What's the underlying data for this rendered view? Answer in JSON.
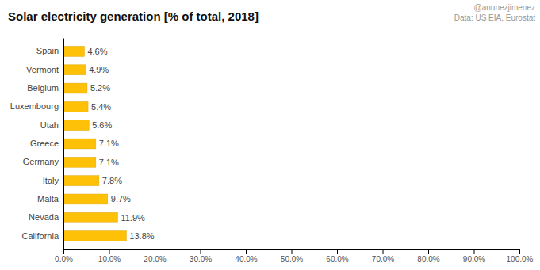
{
  "chart_data": {
    "type": "bar",
    "orientation": "horizontal",
    "title": "Solar electricity generation [% of total, 2018]",
    "annotations": [
      "@anunezjimenez",
      "Data: US EIA, Eurostat"
    ],
    "categories": [
      "California",
      "Nevada",
      "Malta",
      "Italy",
      "Germany",
      "Greece",
      "Utah",
      "Luxembourg",
      "Belgium",
      "Vermont",
      "Spain"
    ],
    "values": [
      13.8,
      11.9,
      9.7,
      7.8,
      7.1,
      7.1,
      5.6,
      5.4,
      5.2,
      4.9,
      4.6
    ],
    "value_labels": [
      "13.8%",
      "11.9%",
      "9.7%",
      "7.8%",
      "7.1%",
      "7.1%",
      "5.6%",
      "5.4%",
      "5.2%",
      "4.9%",
      "4.6%"
    ],
    "data_labels": true,
    "color": "#FFC107",
    "xlim": [
      0,
      100
    ],
    "xticks": [
      {
        "value": 0,
        "label": "0.0%"
      },
      {
        "value": 10,
        "label": "10.0%"
      },
      {
        "value": 20,
        "label": "20.0%"
      },
      {
        "value": 30,
        "label": "30.0%"
      },
      {
        "value": 40,
        "label": "40.0%"
      },
      {
        "value": 50,
        "label": "50.0%"
      },
      {
        "value": 60,
        "label": "60.0%"
      },
      {
        "value": 70,
        "label": "70.0%"
      },
      {
        "value": 80,
        "label": "80.0%"
      },
      {
        "value": 90,
        "label": "90.0%"
      },
      {
        "value": 100,
        "label": "100.0%"
      }
    ],
    "grid": false
  }
}
